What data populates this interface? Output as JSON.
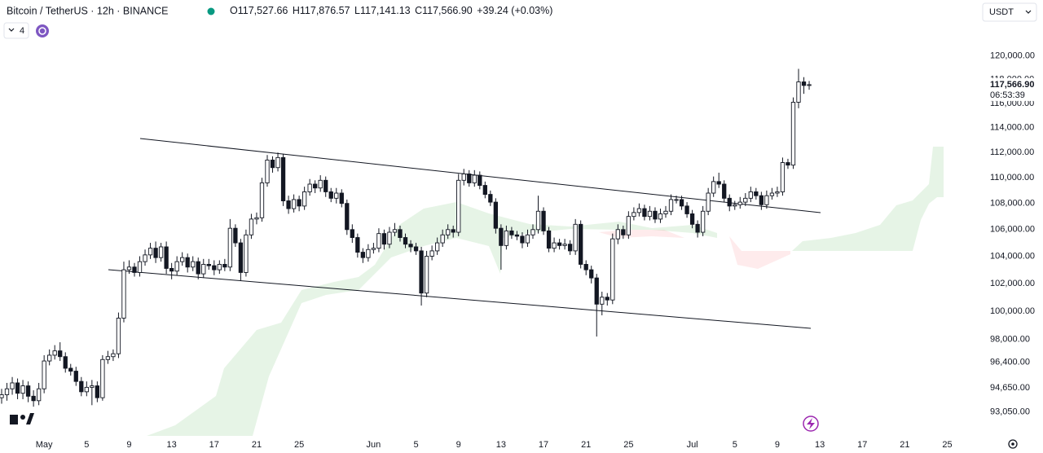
{
  "chart_data": {
    "type": "candlestick",
    "title": "Bitcoin / TetherUS · 12h · BINANCE",
    "ohlc_prefixes": [
      "O",
      "H",
      "L",
      "C"
    ],
    "last_labels": {
      "open": "117,527.66",
      "high": "117,876.57",
      "low": "117,141.13",
      "close": "117,566.90",
      "change": "+39.24 (+0.03%)"
    },
    "indicator_count": "4",
    "countdown": "06:53:39",
    "currency": "USDT",
    "log_scale": true,
    "up_color": "#ffffff",
    "down_color": "#131722",
    "border_color": "#131722",
    "ylim": [
      91470,
      124900
    ],
    "yticks": [
      {
        "value": 93050,
        "label": "93,050.00"
      },
      {
        "value": 94650,
        "label": "94,650.00"
      },
      {
        "value": 96400,
        "label": "96,400.00"
      },
      {
        "value": 98000,
        "label": "98,000.00"
      },
      {
        "value": 100000,
        "label": "100,000.00"
      },
      {
        "value": 102000,
        "label": "102,000.00"
      },
      {
        "value": 104000,
        "label": "104,000.00"
      },
      {
        "value": 106000,
        "label": "106,000.00"
      },
      {
        "value": 108000,
        "label": "108,000.00"
      },
      {
        "value": 110000,
        "label": "110,000.00"
      },
      {
        "value": 112000,
        "label": "112,000.00"
      },
      {
        "value": 114000,
        "label": "114,000.00"
      },
      {
        "value": 116000,
        "label": "116,000.00"
      },
      {
        "value": 118000,
        "label": "118,000.00"
      },
      {
        "value": 120000,
        "label": "120,000.00"
      }
    ],
    "categories": [
      null,
      null,
      null,
      null,
      null,
      null,
      null,
      null,
      "May",
      null,
      null,
      null,
      null,
      null,
      null,
      null,
      "5",
      null,
      null,
      null,
      null,
      null,
      null,
      null,
      "9",
      null,
      null,
      null,
      null,
      null,
      null,
      null,
      "13",
      null,
      null,
      null,
      null,
      null,
      null,
      null,
      "17",
      null,
      null,
      null,
      null,
      null,
      null,
      null,
      "21",
      null,
      null,
      null,
      null,
      null,
      null,
      null,
      "25",
      null,
      null,
      null,
      null,
      null,
      null,
      null,
      null,
      null,
      null,
      null,
      null,
      null,
      "Jun",
      null,
      null,
      null,
      null,
      null,
      null,
      null,
      "5",
      null,
      null,
      null,
      null,
      null,
      null,
      null,
      "9",
      null,
      null,
      null,
      null,
      null,
      null,
      null,
      "13",
      null,
      null,
      null,
      null,
      null,
      null,
      null,
      "17",
      null,
      null,
      null,
      null,
      null,
      null,
      null,
      "21",
      null,
      null,
      null,
      null,
      null,
      null,
      null,
      "25",
      null,
      null,
      null,
      null,
      null,
      null,
      null,
      null,
      null,
      null,
      null,
      "Jul",
      null,
      null,
      null,
      null,
      null,
      null,
      null,
      "5",
      null,
      null,
      null,
      null,
      null,
      null,
      null,
      "9",
      null,
      null,
      null,
      null,
      null,
      null,
      null,
      "13",
      null,
      null,
      null,
      null,
      null,
      null,
      null,
      "17",
      null,
      null,
      null,
      null,
      null,
      null,
      null,
      "21",
      null,
      null,
      null,
      null,
      null,
      null,
      null,
      "25"
    ],
    "open": [
      94000,
      94200,
      94600,
      95000,
      94300,
      94800,
      94100,
      93800,
      94600,
      96500,
      96900,
      97200,
      96800,
      96000,
      95800,
      95100,
      94400,
      94700,
      94800,
      94000,
      96600,
      96800,
      97000,
      99500,
      103000,
      103200,
      102800,
      103600,
      104100,
      104600,
      103900,
      104700,
      103100,
      102900,
      103600,
      103900,
      103200,
      103600,
      102700,
      103400,
      103300,
      103000,
      103400,
      103200,
      106100,
      105000,
      102800,
      105600,
      106800,
      106900,
      109600,
      111400,
      110800,
      111600,
      108200,
      107600,
      108300,
      107800,
      108900,
      109500,
      109200,
      109800,
      108900,
      108400,
      108800,
      108000,
      106000,
      105400,
      104300,
      103900,
      104500,
      104600,
      105700,
      104900,
      105800,
      106000,
      105400,
      104900,
      104700,
      104400,
      101300,
      104000,
      104400,
      105000,
      105600,
      106000,
      105800,
      109800,
      110300,
      109600,
      110200,
      109400,
      108700,
      108100,
      106100,
      104800,
      105900,
      105600,
      105500,
      105000,
      105600,
      106000,
      107400,
      105900,
      104600,
      105000,
      104800,
      104900,
      104400,
      106400,
      103400,
      103000,
      102400,
      100500,
      101000,
      100800,
      105300,
      106000,
      105600,
      107000,
      107300,
      107600,
      107000,
      107400,
      106800,
      107200,
      107400,
      108300,
      108300,
      107800,
      107200,
      106400,
      105800,
      107400,
      108800,
      109700,
      109500,
      108400,
      107800,
      107900,
      108100,
      108400,
      108900,
      108600,
      107900,
      108600,
      108800,
      108900,
      111200,
      111000,
      116100,
      117800,
      117527.66,
      null,
      null,
      null,
      null,
      null,
      null,
      null,
      null,
      null,
      null,
      null,
      null,
      null,
      null,
      null,
      null,
      null,
      null,
      null,
      null,
      null,
      null,
      null,
      null,
      null,
      null
    ],
    "high": [
      94600,
      95000,
      95400,
      95300,
      95200,
      95100,
      94500,
      95000,
      96900,
      97300,
      97600,
      97800,
      97100,
      96300,
      96100,
      95400,
      95100,
      95200,
      95100,
      96900,
      97200,
      97300,
      99900,
      103600,
      103700,
      103500,
      104000,
      104500,
      105000,
      105100,
      105000,
      105100,
      103500,
      104000,
      104300,
      104200,
      104000,
      103900,
      103800,
      103800,
      103700,
      103700,
      103800,
      106800,
      106400,
      105300,
      106000,
      107200,
      107300,
      110000,
      111800,
      111700,
      112000,
      111900,
      108600,
      108700,
      108600,
      109300,
      109900,
      109800,
      110200,
      110100,
      109200,
      109200,
      109100,
      108300,
      106400,
      105700,
      104600,
      104900,
      105000,
      106100,
      106000,
      106200,
      106500,
      106300,
      105700,
      105200,
      105000,
      104700,
      104400,
      104800,
      105400,
      106000,
      106400,
      106300,
      110300,
      110700,
      110600,
      110600,
      110500,
      109700,
      109000,
      108400,
      106400,
      106300,
      106200,
      105900,
      105800,
      106000,
      106400,
      108600,
      107700,
      106200,
      105400,
      105300,
      105300,
      105200,
      106800,
      106700,
      103700,
      103300,
      102700,
      101400,
      101300,
      105700,
      106400,
      106300,
      107400,
      107700,
      108000,
      107900,
      107800,
      107700,
      107600,
      107800,
      108700,
      108600,
      108600,
      108100,
      107500,
      106700,
      107800,
      109200,
      110100,
      110400,
      109800,
      108700,
      108200,
      108500,
      108800,
      109300,
      109200,
      108900,
      109000,
      109200,
      109300,
      111600,
      111500,
      116500,
      118900,
      118200,
      117876.57,
      null,
      null,
      null,
      null,
      null,
      null,
      null,
      null,
      null,
      null,
      null,
      null,
      null,
      null,
      null,
      null,
      null,
      null,
      null,
      null,
      null,
      null,
      null,
      null,
      null,
      null
    ],
    "low": [
      93600,
      93800,
      94200,
      93900,
      93900,
      93700,
      93400,
      93500,
      94300,
      96200,
      96600,
      96500,
      95700,
      95500,
      94800,
      94100,
      94100,
      93500,
      93700,
      93800,
      96300,
      96500,
      96700,
      99200,
      102700,
      102500,
      102500,
      103300,
      103800,
      103500,
      103600,
      102700,
      102300,
      102600,
      103300,
      102800,
      102900,
      102300,
      102400,
      103000,
      102600,
      102700,
      102900,
      102900,
      104700,
      102200,
      102500,
      105300,
      106400,
      106600,
      109300,
      110400,
      110500,
      107800,
      107200,
      107300,
      107400,
      107500,
      108600,
      108800,
      108900,
      108500,
      108100,
      108000,
      107700,
      105600,
      105000,
      103900,
      103500,
      103600,
      104200,
      104300,
      104500,
      104600,
      105500,
      105100,
      104600,
      104300,
      104100,
      100400,
      101000,
      103700,
      104100,
      104700,
      105300,
      105400,
      105500,
      109400,
      109300,
      109300,
      109100,
      108400,
      107800,
      105700,
      103000,
      104500,
      105300,
      105200,
      104600,
      104700,
      105300,
      105700,
      105600,
      104300,
      104300,
      104500,
      104500,
      104100,
      104100,
      103100,
      102600,
      102000,
      98200,
      99700,
      100400,
      100500,
      104900,
      105300,
      105300,
      106700,
      107000,
      106700,
      106700,
      106500,
      106500,
      106900,
      107100,
      108000,
      107500,
      106900,
      106100,
      105400,
      105500,
      107100,
      108500,
      109200,
      108100,
      107400,
      107500,
      107600,
      107800,
      108100,
      108300,
      107500,
      107600,
      108300,
      108500,
      108600,
      110700,
      110700,
      115600,
      116800,
      117141.13,
      null,
      null,
      null,
      null,
      null,
      null,
      null,
      null,
      null,
      null,
      null,
      null,
      null,
      null,
      null,
      null,
      null,
      null,
      null,
      null,
      null,
      null,
      null,
      null,
      null,
      null
    ],
    "close": [
      94200,
      94600,
      95000,
      94300,
      94800,
      94100,
      93800,
      94600,
      96500,
      96900,
      97200,
      96800,
      96000,
      95800,
      95100,
      94400,
      94700,
      94800,
      94000,
      96600,
      96800,
      97000,
      99500,
      103000,
      103200,
      102800,
      103600,
      104100,
      104600,
      103900,
      104700,
      103100,
      102900,
      103600,
      103900,
      103200,
      103600,
      102700,
      103400,
      103300,
      103000,
      103400,
      103200,
      106100,
      105000,
      102800,
      105600,
      106800,
      106900,
      109600,
      111400,
      110800,
      111600,
      108200,
      107600,
      108300,
      107800,
      108900,
      109500,
      109200,
      109800,
      108900,
      108400,
      108800,
      108000,
      106000,
      105400,
      104300,
      103900,
      104500,
      104600,
      105700,
      104900,
      105800,
      106000,
      105400,
      104900,
      104700,
      104400,
      101300,
      104000,
      104400,
      105000,
      105600,
      106000,
      105800,
      109800,
      110300,
      109600,
      110200,
      109400,
      108700,
      108100,
      106100,
      104800,
      105900,
      105600,
      105500,
      105000,
      105600,
      106000,
      107400,
      105900,
      104600,
      105000,
      104800,
      104900,
      104400,
      106400,
      103400,
      103000,
      102400,
      100500,
      101000,
      100800,
      105300,
      106000,
      105600,
      107000,
      107300,
      107600,
      107000,
      107400,
      106800,
      107200,
      107400,
      108300,
      108300,
      107800,
      107200,
      106400,
      105800,
      107400,
      108800,
      109700,
      109500,
      108400,
      107800,
      107900,
      108100,
      108400,
      108900,
      108600,
      107900,
      108600,
      108800,
      108900,
      111200,
      111000,
      116100,
      117800,
      117500,
      117566.9,
      null,
      null,
      null,
      null,
      null,
      null,
      null,
      null,
      null,
      null,
      null,
      null,
      null,
      null,
      null,
      null,
      null,
      null,
      null,
      null,
      null,
      null,
      null,
      null,
      null,
      null
    ]
  }
}
